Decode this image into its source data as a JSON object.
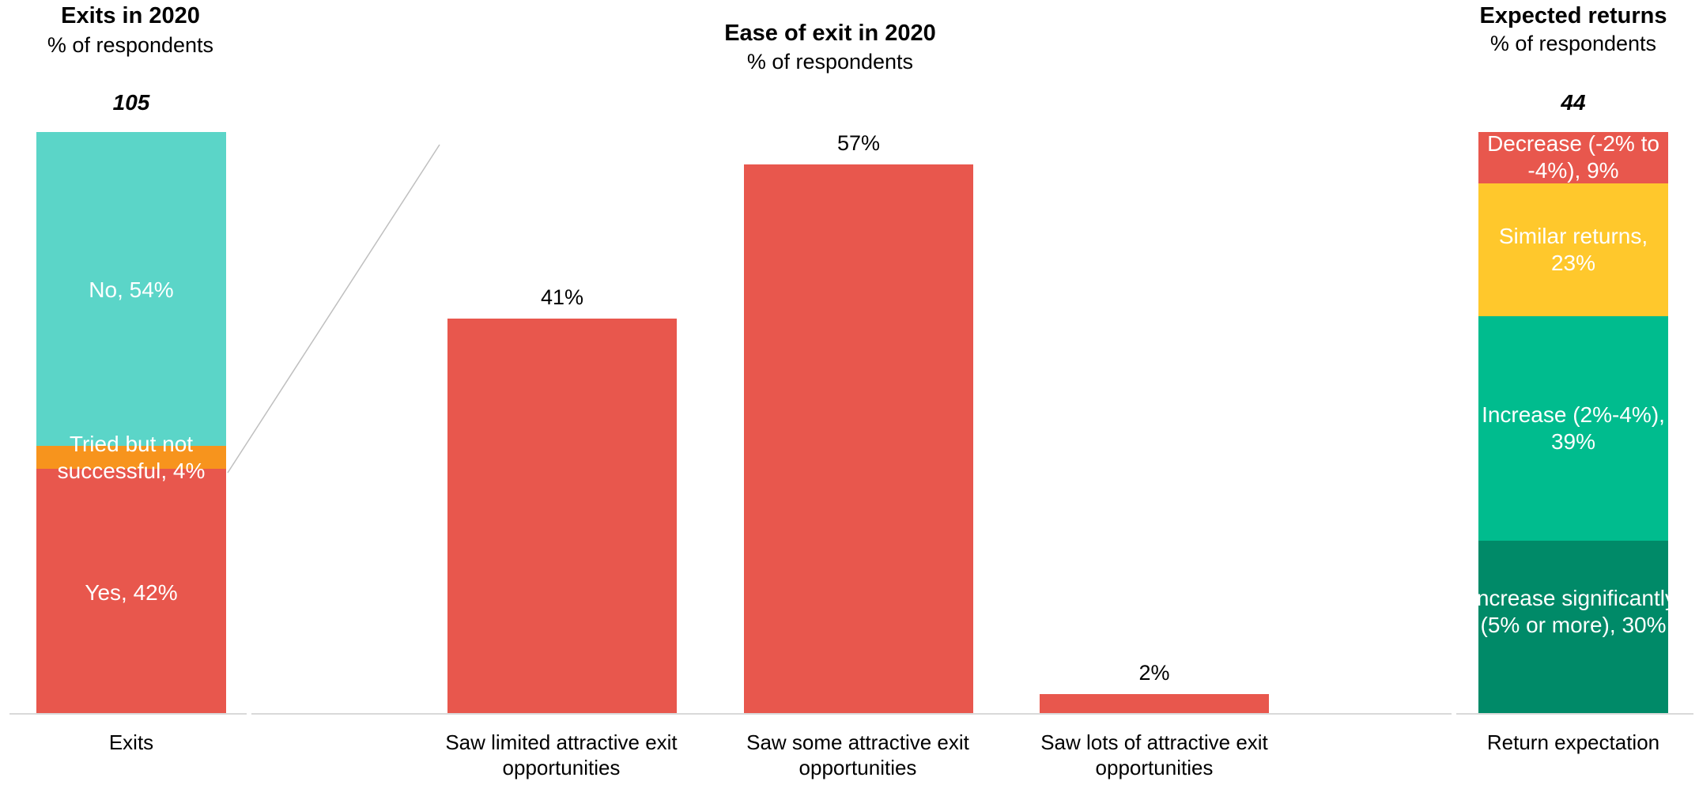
{
  "chart_data": [
    {
      "type": "bar",
      "stacked": true,
      "title": "Exits in 2020",
      "subtitle": "% of respondents",
      "total_label": "105",
      "categories": [
        "Exits"
      ],
      "series": [
        {
          "name": "Yes, 42%",
          "values": [
            42
          ],
          "color": "#E8574D"
        },
        {
          "name": "Tried but not successful, 4%",
          "values": [
            4
          ],
          "color": "#F7941D"
        },
        {
          "name": "No, 54%",
          "values": [
            54
          ],
          "color": "#5BD5C8"
        }
      ],
      "ylim": [
        0,
        100
      ]
    },
    {
      "type": "bar",
      "title": "Ease of exit in 2020",
      "subtitle": "% of respondents",
      "categories": [
        "Saw limited attractive exit opportunities",
        "Saw some attractive exit opportunities",
        "Saw lots of attractive exit opportunities"
      ],
      "values": [
        41,
        57,
        2
      ],
      "value_labels": [
        "41%",
        "57%",
        "2%"
      ],
      "color": "#E8574D",
      "ylim": [
        0,
        62
      ]
    },
    {
      "type": "bar",
      "stacked": true,
      "title": "Expected returns",
      "subtitle": "% of respondents",
      "total_label": "44",
      "categories": [
        "Return expectation"
      ],
      "series": [
        {
          "name": "Increase significantly (5% or more), 30%",
          "values": [
            30
          ],
          "color": "#008A68"
        },
        {
          "name": "Increase (2%-4%), 39%",
          "values": [
            39
          ],
          "color": "#00BC8E"
        },
        {
          "name": "Similar returns, 23%",
          "values": [
            23
          ],
          "color": "#FFC82C"
        },
        {
          "name": "Decrease (-2% to -4%), 9%",
          "values": [
            9
          ],
          "color": "#E8574D"
        }
      ],
      "ylim": [
        0,
        101
      ]
    }
  ]
}
